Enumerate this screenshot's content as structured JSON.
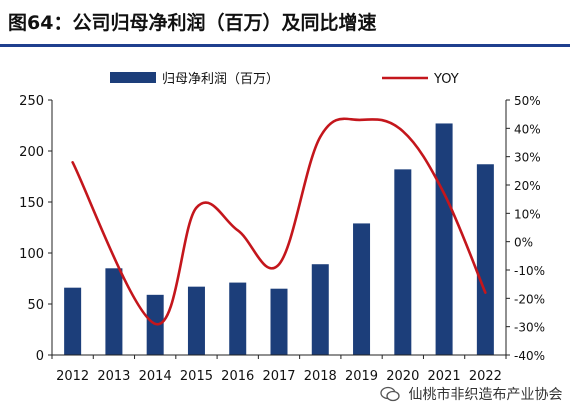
{
  "header": {
    "title": "图64：公司归母净利润（百万）及同比增速"
  },
  "colors": {
    "bar": "#1c3e7a",
    "line": "#c4161c",
    "header_rule": "#1f3f8e",
    "axis": "#222222"
  },
  "watermark": {
    "text": "仙桃市非织造布产业协会",
    "icon": "wechat-icon"
  },
  "chart_data": {
    "type": "bar",
    "categories": [
      "2012",
      "2013",
      "2014",
      "2015",
      "2016",
      "2017",
      "2018",
      "2019",
      "2020",
      "2021",
      "2022"
    ],
    "series": [
      {
        "name": "归母净利润（百万）",
        "type": "bar",
        "axis": "left",
        "values": [
          66,
          85,
          59,
          67,
          71,
          65,
          89,
          129,
          182,
          227,
          187
        ]
      },
      {
        "name": "YOY",
        "type": "line",
        "axis": "right",
        "values": [
          28,
          null,
          -29,
          12,
          4,
          -8,
          37,
          43,
          39,
          17,
          -18
        ]
      }
    ],
    "ylim_left": [
      0,
      250
    ],
    "yticks_left": [
      "0",
      "50",
      "100",
      "150",
      "200",
      "250"
    ],
    "ylim_right": [
      -40,
      50
    ],
    "yticks_right": [
      "-40%",
      "-30%",
      "-20%",
      "-10%",
      "0%",
      "10%",
      "20%",
      "30%",
      "40%",
      "50%"
    ],
    "legend": [
      "归母净利润（百万）",
      "YOY"
    ],
    "legend_position": "top",
    "grid": false
  }
}
